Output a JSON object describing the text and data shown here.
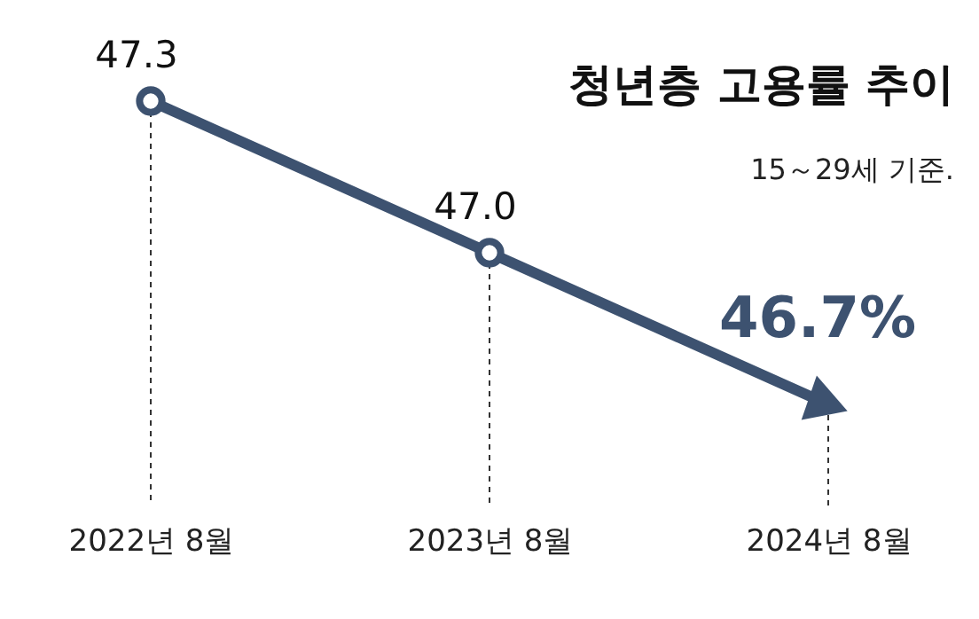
{
  "chart_data": {
    "type": "line",
    "title": "청년층 고용률 추이",
    "subtitle": "15～29세 기준.",
    "categories": [
      "2022년 8월",
      "2023년 8월",
      "2024년 8월"
    ],
    "series": [
      {
        "color": "#3d5270",
        "values": [
          47.3,
          47.0,
          46.7
        ],
        "value_labels": [
          "47.3",
          "47.0",
          "46.7%"
        ]
      }
    ],
    "marker": "circle",
    "line_style": "solid",
    "grid": "x",
    "tick_labels": "x"
  }
}
